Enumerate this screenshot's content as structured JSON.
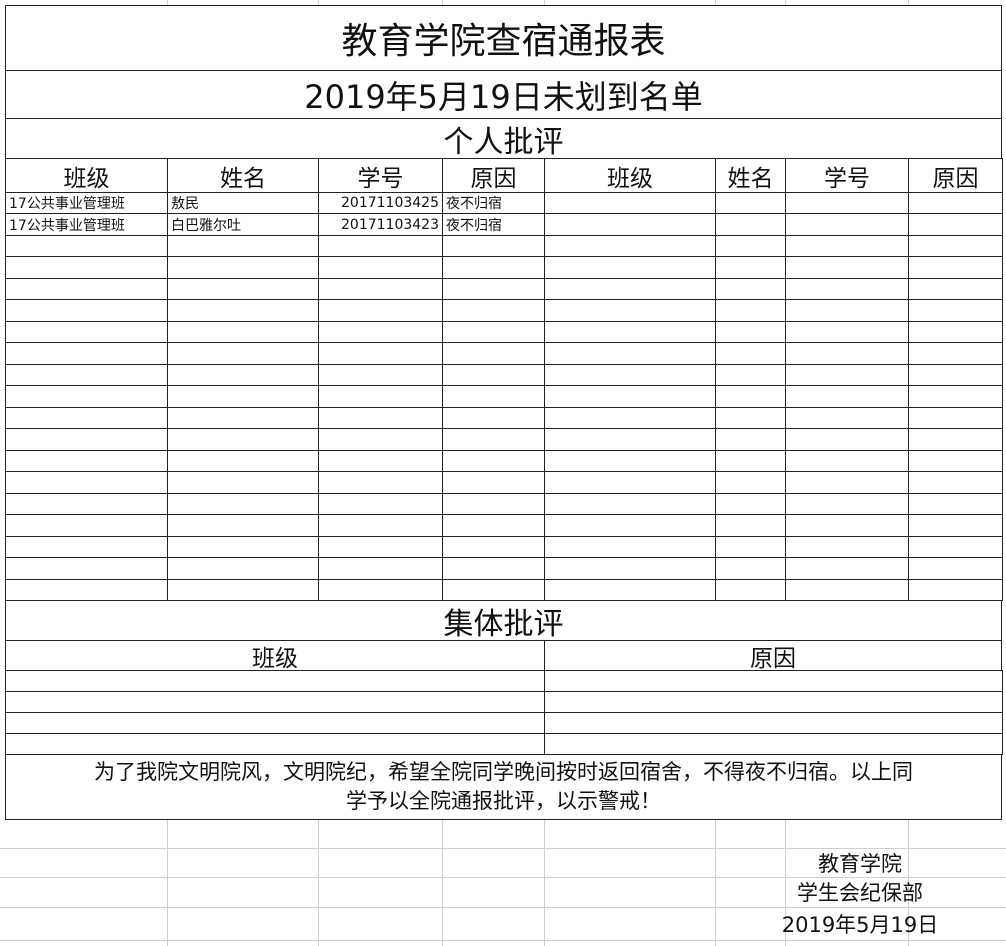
{
  "title": "教育学院查宿通报表",
  "subtitle": "2019年5月19日未划到名单",
  "individual": {
    "heading": "个人批评",
    "columns": [
      "班级",
      "姓名",
      "学号",
      "原因",
      "班级",
      "姓名",
      "学号",
      "原因"
    ],
    "rows": [
      {
        "class": "17公共事业管理班",
        "name": "敖民",
        "id": "20171103425",
        "reason": "夜不归宿"
      },
      {
        "class": "17公共事业管理班",
        "name": " 白巴雅尔吐",
        "id": "20171103423",
        "reason": "夜不归宿"
      }
    ]
  },
  "collective": {
    "heading": "集体批评",
    "columns": [
      "班级",
      "原因"
    ]
  },
  "notice": {
    "line1": "为了我院文明院风，文明院纪，希望全院同学晚间按时返回宿舍，不得夜不归宿。以上同",
    "line2": "学予以全院通报批评，以示警戒！"
  },
  "signature": {
    "org": "教育学院",
    "dept": "学生会纪保部",
    "date": "2019年5月19日"
  }
}
